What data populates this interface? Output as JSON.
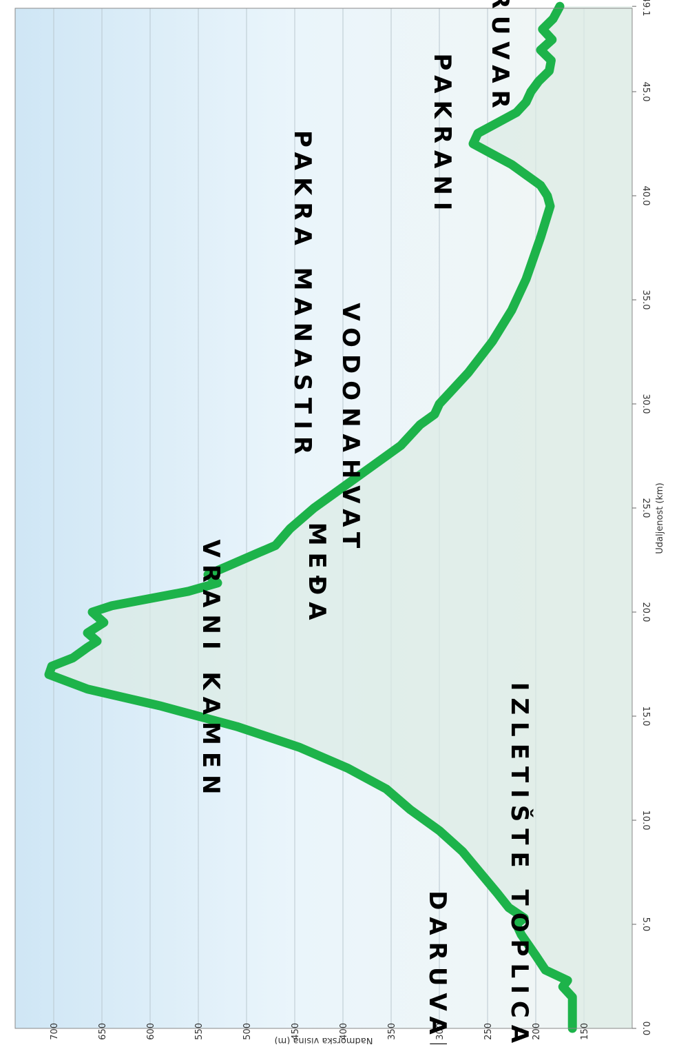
{
  "chart_data": {
    "type": "area",
    "title": "",
    "xlabel": "Udaljenost (km)",
    "ylabel": "Nadmorska visina (m)",
    "xlim": [
      0,
      49.1
    ],
    "ylim": [
      100,
      725
    ],
    "x_ticks": [
      "0.0",
      "5.0",
      "10.0",
      "15.0",
      "20.0",
      "25.0",
      "30.0",
      "35.0",
      "40.0",
      "45.0",
      "49.1"
    ],
    "y_ticks": [
      "150",
      "200",
      "250",
      "300",
      "350",
      "400",
      "450",
      "500",
      "550",
      "600",
      "650",
      "700"
    ],
    "grid": true,
    "series": [
      {
        "color": "#1db34a",
        "x": [
          0.0,
          1.5,
          2.0,
          2.3,
          2.8,
          3.5,
          4.5,
          5.0,
          5.3,
          5.8,
          6.5,
          7.5,
          8.5,
          9.5,
          10.5,
          11.5,
          12.5,
          13.5,
          14.5,
          15.5,
          16.3,
          17.0,
          17.4,
          17.8,
          18.3,
          18.6,
          19.0,
          19.5,
          20.0,
          20.3,
          21.0,
          21.4,
          21.8,
          22.2,
          22.8,
          23.2,
          24.0,
          25.0,
          26.0,
          27.0,
          28.0,
          29.0,
          29.5,
          30.0,
          30.5,
          31.5,
          33.0,
          34.5,
          36.0,
          38.0,
          39.5,
          40.0,
          40.5,
          41.0,
          41.5,
          42.0,
          42.5,
          43.0,
          43.5,
          44.0,
          44.5,
          45.0,
          45.5,
          46.0,
          46.5,
          47.0,
          47.5,
          48.0,
          48.5,
          49.1
        ],
        "values": [
          162,
          162,
          172,
          167,
          190,
          200,
          215,
          220,
          212,
          228,
          240,
          258,
          276,
          300,
          330,
          355,
          395,
          445,
          510,
          590,
          665,
          705,
          702,
          680,
          665,
          655,
          665,
          648,
          660,
          640,
          560,
          530,
          540,
          520,
          490,
          470,
          455,
          430,
          400,
          370,
          340,
          320,
          305,
          300,
          290,
          270,
          245,
          225,
          210,
          195,
          185,
          188,
          195,
          210,
          225,
          245,
          265,
          260,
          240,
          220,
          210,
          205,
          197,
          186,
          184,
          195,
          183,
          193,
          182,
          175
        ]
      }
    ],
    "annotations": [
      {
        "text": "DARUVAR",
        "x": 2.4,
        "y": 310
      },
      {
        "text": "IZLETIŠTE TOPLICA",
        "x": 7.8,
        "y": 225
      },
      {
        "text": "VRANI KAMEN",
        "x": 17.2,
        "y": 545
      },
      {
        "text": "MEĐA",
        "x": 21.8,
        "y": 435
      },
      {
        "text": "VODONAHVAT",
        "x": 28.8,
        "y": 400
      },
      {
        "text": "PAKRA MANASTIR",
        "x": 35.2,
        "y": 450
      },
      {
        "text": "PAKRANI",
        "x": 42.9,
        "y": 305
      },
      {
        "text": "DARUVAR",
        "x": 48.1,
        "y": 245
      }
    ]
  }
}
